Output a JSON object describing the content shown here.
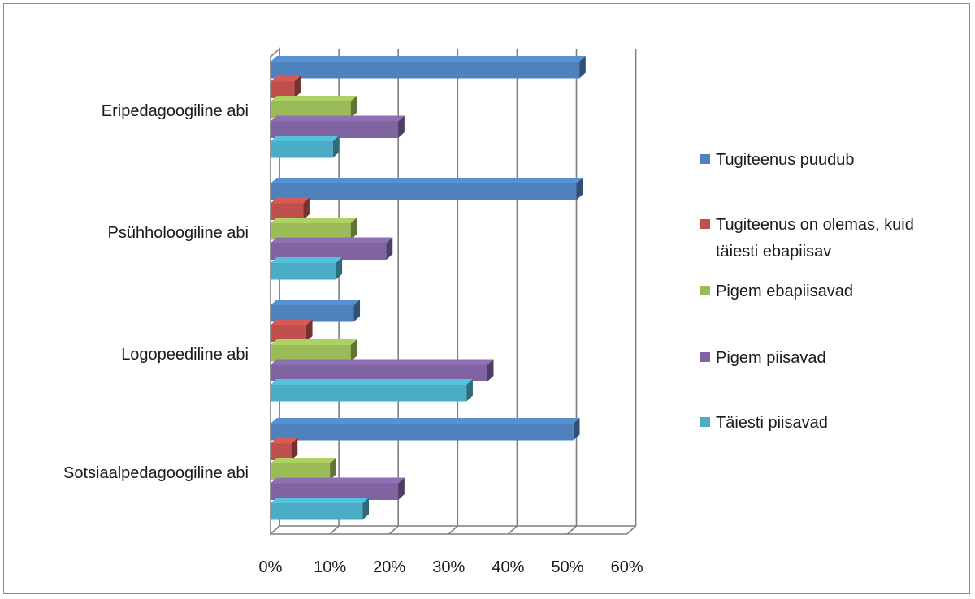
{
  "chart_data": {
    "type": "bar",
    "orientation": "horizontal",
    "style": "3d",
    "categories": [
      "Eripedagoogiline abi",
      "Psühholoogiline abi",
      "Logopeediline abi",
      "Sotsiaalpedagoogiline abi"
    ],
    "series": [
      {
        "name": "Tugiteenus puudub",
        "color": "#4f81bd",
        "values": [
          52,
          51.5,
          14,
          51
        ]
      },
      {
        "name_lines": [
          "Tugiteenus on olemas, kuid",
          "täiesti ebapiisav"
        ],
        "color": "#c0504d",
        "values": [
          4,
          5.5,
          6,
          3.5
        ]
      },
      {
        "name": "Pigem ebapiisavad",
        "color": "#9bbb59",
        "values": [
          13.5,
          13.5,
          13.5,
          10
        ]
      },
      {
        "name": "Pigem piisavad",
        "color": "#8064a2",
        "values": [
          21.5,
          19.5,
          36.5,
          21.5
        ]
      },
      {
        "name": "Täiesti piisavad",
        "color": "#4bacc6",
        "values": [
          10.5,
          11,
          33,
          15.5
        ]
      }
    ],
    "x_ticks": [
      "0%",
      "10%",
      "20%",
      "30%",
      "40%",
      "50%",
      "60%"
    ],
    "xlim": [
      0,
      60
    ],
    "grid": true,
    "legend_position": "right"
  }
}
